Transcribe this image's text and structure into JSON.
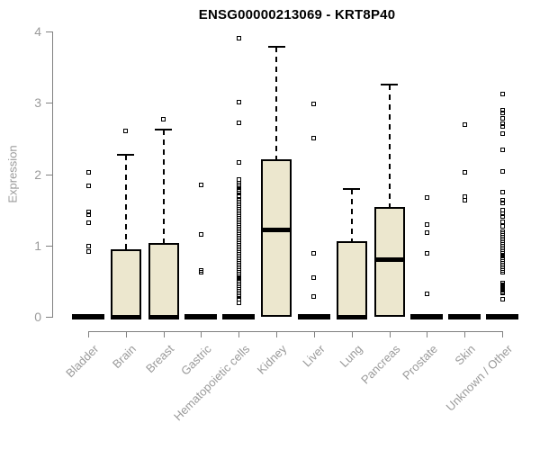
{
  "title": "ENSG00000213069 - KRT8P40",
  "colors": {
    "box_fill": "#ece7ce",
    "box_border": "#000000",
    "axis": "#808080",
    "tick_label": "#9a9a9a",
    "title_text": "#000000",
    "background": "#ffffff"
  },
  "chart_data": {
    "type": "boxplot",
    "title": "ENSG00000213069 - KRT8P40",
    "xlabel": "",
    "ylabel": "Expression",
    "ylim": [
      0,
      4
    ],
    "yticks": [
      0,
      1,
      2,
      3,
      4
    ],
    "grid": false,
    "legend": false,
    "categories": [
      "Bladder",
      "Brain",
      "Breast",
      "Gastric",
      "Hematopoietic cells",
      "Kidney",
      "Liver",
      "Lung",
      "Pancreas",
      "Prostate",
      "Skin",
      "Unknown / Other"
    ],
    "series": [
      {
        "category": "Bladder",
        "q1": 0,
        "median": 0,
        "q3": 0,
        "whisker_low": 0,
        "whisker_high": 0,
        "outliers": [
          2.02,
          1.83,
          1.47,
          1.43,
          1.32,
          0.99,
          0.91
        ]
      },
      {
        "category": "Brain",
        "q1": 0,
        "median": 0,
        "q3": 0.95,
        "whisker_low": 0,
        "whisker_high": 2.27,
        "outliers": [
          2.61
        ]
      },
      {
        "category": "Breast",
        "q1": 0,
        "median": 0,
        "q3": 1.03,
        "whisker_low": 0,
        "whisker_high": 2.63,
        "outliers": [
          2.77
        ]
      },
      {
        "category": "Gastric",
        "q1": 0,
        "median": 0,
        "q3": 0,
        "whisker_low": 0,
        "whisker_high": 0,
        "outliers": [
          1.85,
          1.16,
          0.65,
          0.62
        ]
      },
      {
        "category": "Hematopoietic cells",
        "q1": 0,
        "median": 0,
        "q3": 0,
        "whisker_low": 0,
        "whisker_high": 0,
        "outliers": [
          3.9,
          3.01,
          2.72,
          2.17,
          1.92,
          1.88,
          1.85,
          1.82,
          1.79,
          1.76,
          1.73,
          1.7,
          1.63,
          1.605,
          1.58,
          1.555,
          1.53,
          1.505,
          1.48,
          1.455,
          1.43,
          1.405,
          1.38,
          1.355,
          1.33,
          1.305,
          1.28,
          1.255,
          1.23,
          1.205,
          1.18,
          1.155,
          1.13,
          1.105,
          1.08,
          1.055,
          1.03,
          1.005,
          0.98,
          0.955,
          0.93,
          0.905,
          0.88,
          0.855,
          0.83,
          0.805,
          0.78,
          0.755,
          0.73,
          0.705,
          0.68,
          0.655,
          0.63,
          0.605,
          0.58,
          0.555,
          0.53,
          0.505,
          0.48,
          0.455,
          0.43,
          0.405,
          0.38,
          0.355,
          0.33,
          0.305,
          0.28,
          0.25,
          0.2
        ]
      },
      {
        "category": "Kidney",
        "q1": 0,
        "median": 1.22,
        "q3": 2.21,
        "whisker_low": 0,
        "whisker_high": 3.79,
        "outliers": []
      },
      {
        "category": "Liver",
        "q1": 0,
        "median": 0,
        "q3": 0,
        "whisker_low": 0,
        "whisker_high": 0,
        "outliers": [
          2.99,
          2.51,
          0.89,
          0.55,
          0.28
        ]
      },
      {
        "category": "Lung",
        "q1": 0,
        "median": 0,
        "q3": 1.06,
        "whisker_low": 0,
        "whisker_high": 1.79,
        "outliers": []
      },
      {
        "category": "Pancreas",
        "q1": 0,
        "median": 0.8,
        "q3": 1.54,
        "whisker_low": 0,
        "whisker_high": 3.26,
        "outliers": []
      },
      {
        "category": "Prostate",
        "q1": 0,
        "median": 0,
        "q3": 0,
        "whisker_low": 0,
        "whisker_high": 0,
        "outliers": [
          1.67,
          1.29,
          1.18,
          0.89,
          0.32
        ]
      },
      {
        "category": "Skin",
        "q1": 0,
        "median": 0,
        "q3": 0,
        "whisker_low": 0,
        "whisker_high": 0,
        "outliers": [
          2.7,
          2.03,
          1.69,
          1.63
        ]
      },
      {
        "category": "Unknown / Other",
        "q1": 0,
        "median": 0,
        "q3": 0,
        "whisker_low": 0,
        "whisker_high": 0,
        "outliers": [
          3.12,
          2.9,
          2.86,
          2.78,
          2.71,
          2.67,
          2.57,
          2.34,
          2.04,
          1.75,
          1.64,
          1.6,
          1.5,
          1.45,
          1.41,
          1.33,
          1.27,
          1.19,
          1.165,
          1.14,
          1.115,
          1.09,
          1.065,
          1.04,
          1.015,
          0.99,
          0.965,
          0.94,
          0.915,
          0.89,
          0.87,
          0.85,
          0.825,
          0.8,
          0.775,
          0.75,
          0.725,
          0.7,
          0.675,
          0.65,
          0.625,
          0.47,
          0.45,
          0.43,
          0.41,
          0.39,
          0.37,
          0.35,
          0.33,
          0.24
        ]
      }
    ]
  }
}
